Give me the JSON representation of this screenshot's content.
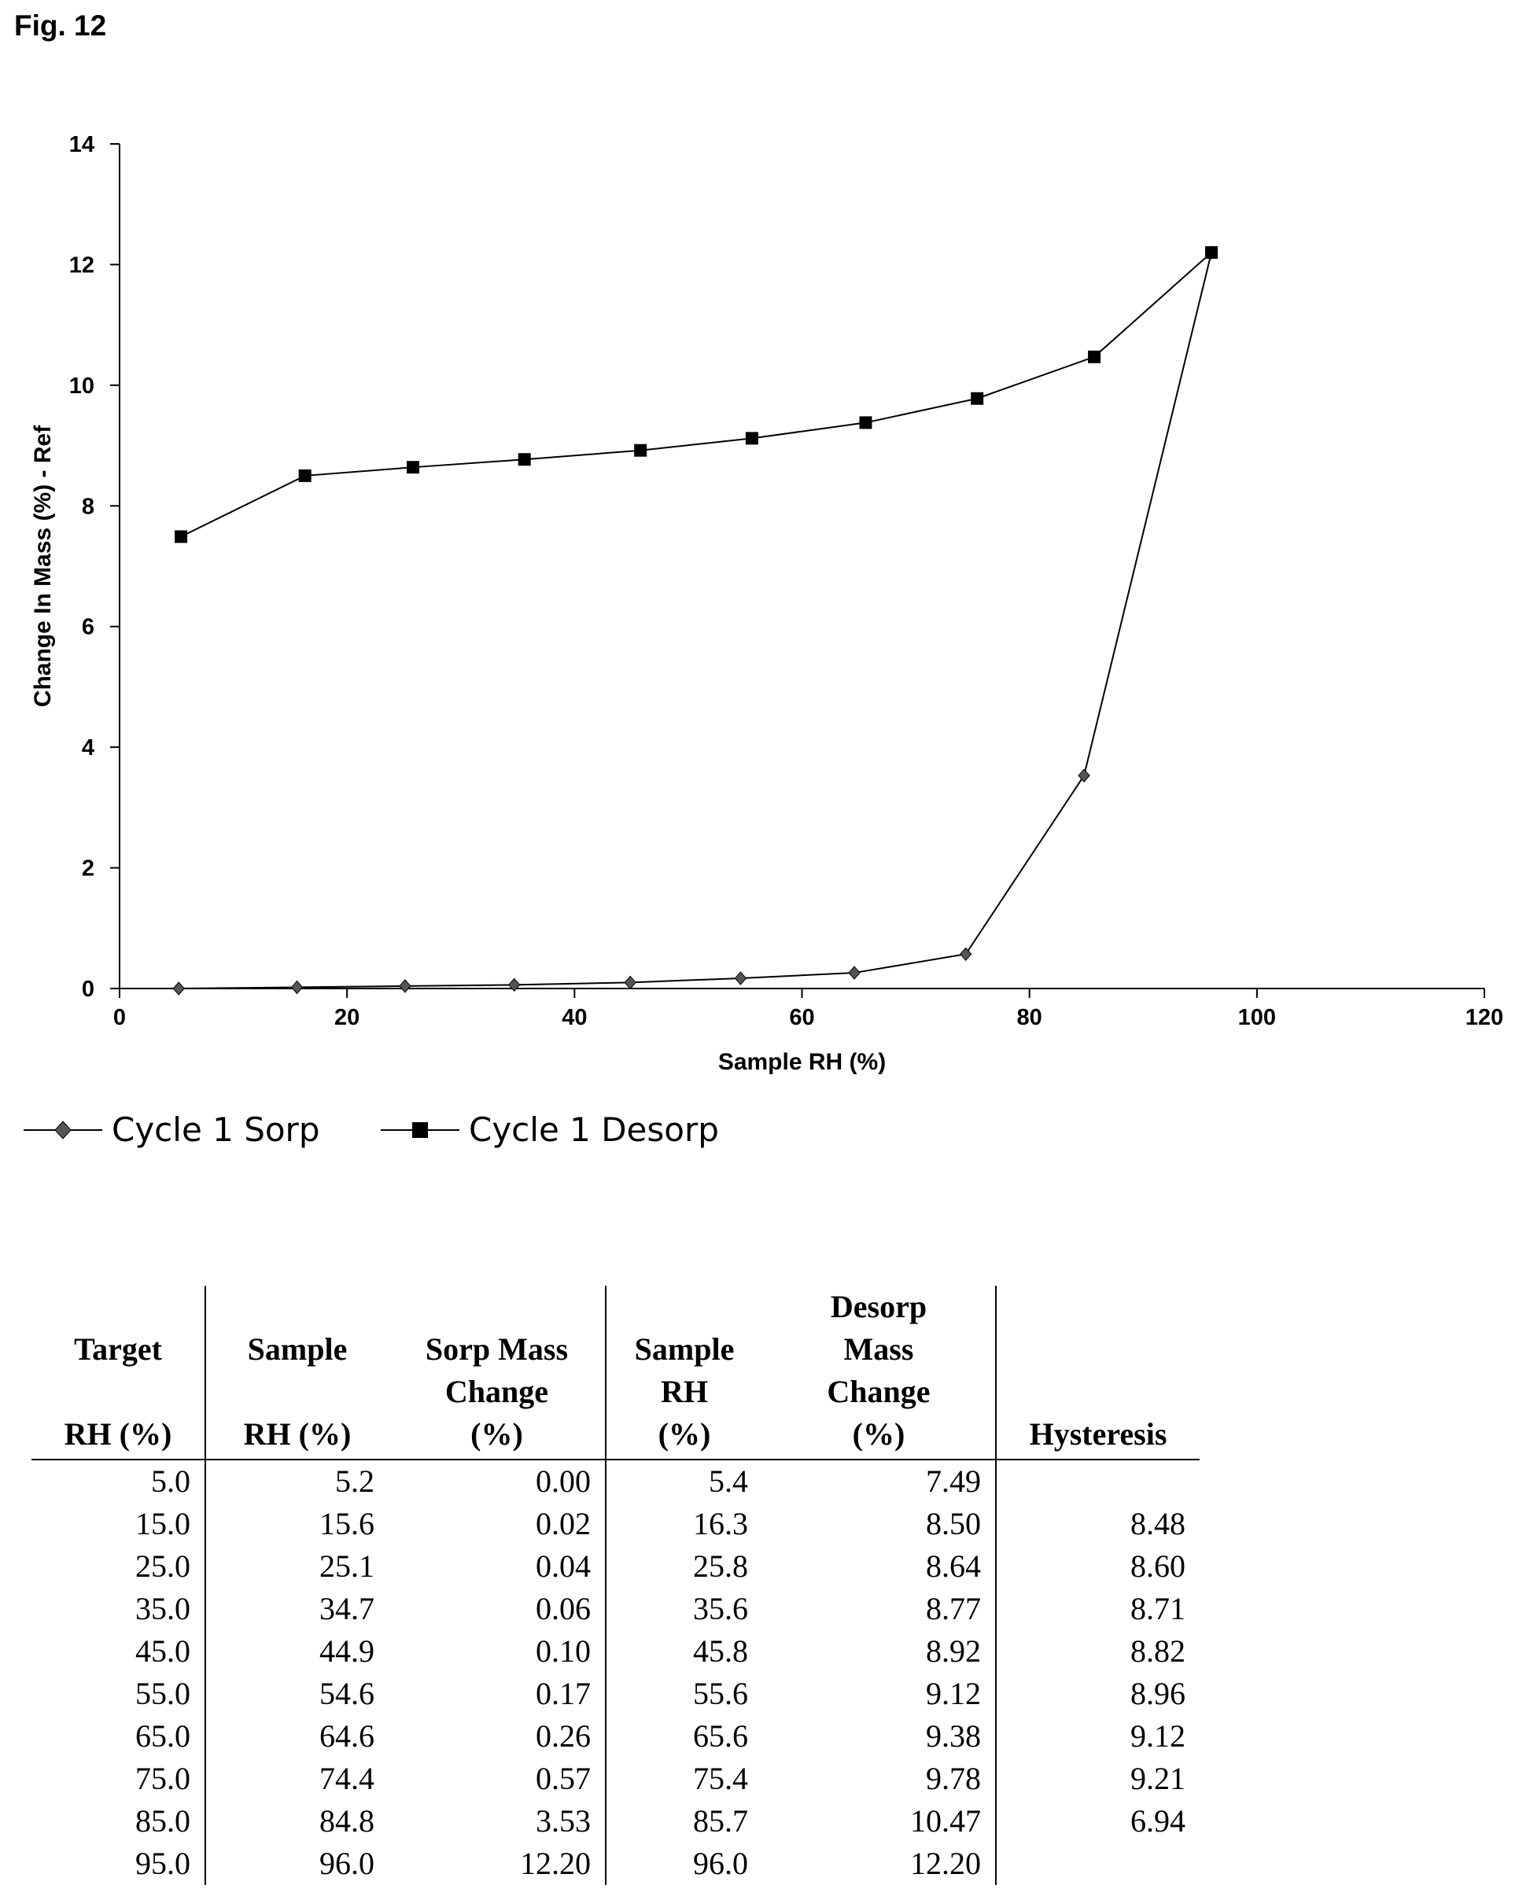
{
  "figure_label": "Fig. 12",
  "chart_data": {
    "type": "line",
    "xlabel": "Sample RH (%)",
    "ylabel": "Change In Mass (%)  - Ref",
    "xlim": [
      0,
      120
    ],
    "ylim": [
      0,
      14
    ],
    "x_ticks": [
      "0",
      "20",
      "40",
      "60",
      "80",
      "100",
      "120"
    ],
    "y_ticks": [
      "0",
      "2",
      "4",
      "6",
      "8",
      "10",
      "12",
      "14"
    ],
    "grid": false,
    "legend_position": "bottom-left",
    "series": [
      {
        "name": "Cycle 1 Sorp",
        "marker": "diamond",
        "x": [
          5.2,
          15.6,
          25.1,
          34.7,
          44.9,
          54.6,
          64.6,
          74.4,
          84.8,
          96.0
        ],
        "y": [
          0.0,
          0.02,
          0.04,
          0.06,
          0.1,
          0.17,
          0.26,
          0.57,
          3.53,
          12.2
        ]
      },
      {
        "name": "Cycle 1 Desorp",
        "marker": "square",
        "x": [
          5.4,
          16.3,
          25.8,
          35.6,
          45.8,
          55.6,
          65.6,
          75.4,
          85.7,
          96.0
        ],
        "y": [
          7.49,
          8.5,
          8.64,
          8.77,
          8.92,
          9.12,
          9.38,
          9.78,
          10.47,
          12.2
        ]
      }
    ]
  },
  "table": {
    "headers": [
      [
        "Target",
        "",
        "RH (%)"
      ],
      [
        "Sample",
        "",
        "RH (%)"
      ],
      [
        "Sorp Mass",
        "Change",
        "(%)"
      ],
      [
        "Sample",
        "RH",
        "(%)"
      ],
      [
        "Desorp",
        "Mass",
        "Change",
        "(%)"
      ],
      [
        "",
        "",
        "Hysteresis"
      ]
    ],
    "rows": [
      [
        "5.0",
        "5.2",
        "0.00",
        "5.4",
        "7.49",
        ""
      ],
      [
        "15.0",
        "15.6",
        "0.02",
        "16.3",
        "8.50",
        "8.48"
      ],
      [
        "25.0",
        "25.1",
        "0.04",
        "25.8",
        "8.64",
        "8.60"
      ],
      [
        "35.0",
        "34.7",
        "0.06",
        "35.6",
        "8.77",
        "8.71"
      ],
      [
        "45.0",
        "44.9",
        "0.10",
        "45.8",
        "8.92",
        "8.82"
      ],
      [
        "55.0",
        "54.6",
        "0.17",
        "55.6",
        "9.12",
        "8.96"
      ],
      [
        "65.0",
        "64.6",
        "0.26",
        "65.6",
        "9.38",
        "9.12"
      ],
      [
        "75.0",
        "74.4",
        "0.57",
        "75.4",
        "9.78",
        "9.21"
      ],
      [
        "85.0",
        "84.8",
        "3.53",
        "85.7",
        "10.47",
        "6.94"
      ],
      [
        "95.0",
        "96.0",
        "12.20",
        "96.0",
        "12.20",
        ""
      ]
    ]
  }
}
